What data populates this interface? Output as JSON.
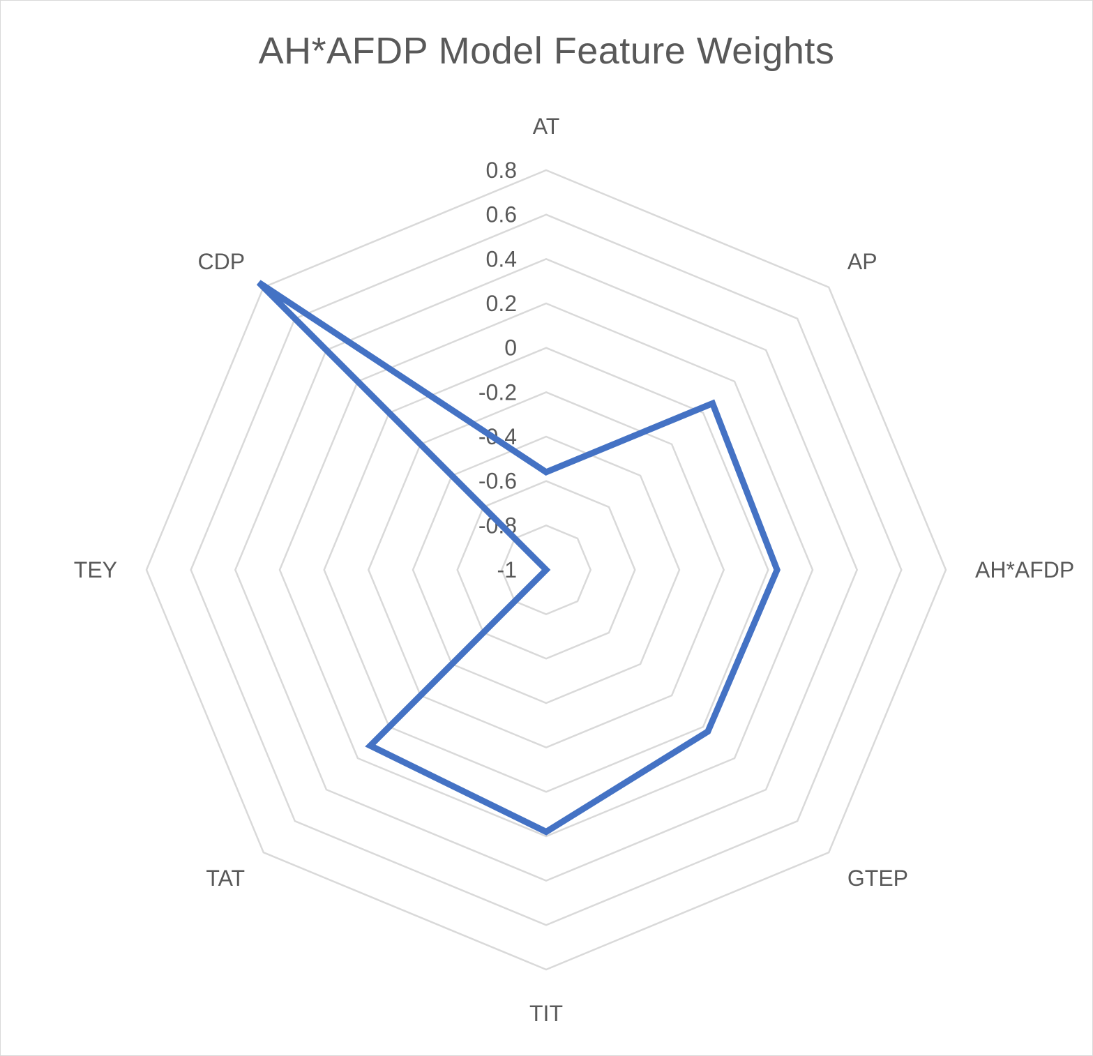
{
  "chart_data": {
    "type": "radar",
    "title": "AH*AFDP Model Feature Weights",
    "categories": [
      "AT",
      "AP",
      "AH*AFDP",
      "GTEP",
      "TIT",
      "TAT",
      "TEY",
      "CDP"
    ],
    "series": [
      {
        "values": [
          -0.56,
          0.06,
          0.04,
          0.03,
          0.18,
          0.12,
          -1.0,
          0.83
        ],
        "color": "#4472c4"
      }
    ],
    "rlim": [
      -1,
      0.8
    ],
    "ticks": [
      -1,
      -0.8,
      -0.6,
      -0.4,
      -0.2,
      0,
      0.2,
      0.4,
      0.6,
      0.8
    ],
    "tick_labels": [
      "-1",
      "-0.8",
      "-0.6",
      "-0.4",
      "-0.2",
      "0",
      "0.2",
      "0.4",
      "0.6",
      "0.8"
    ],
    "grid": true,
    "grid_color": "#d9d9d9",
    "legend": "none"
  }
}
